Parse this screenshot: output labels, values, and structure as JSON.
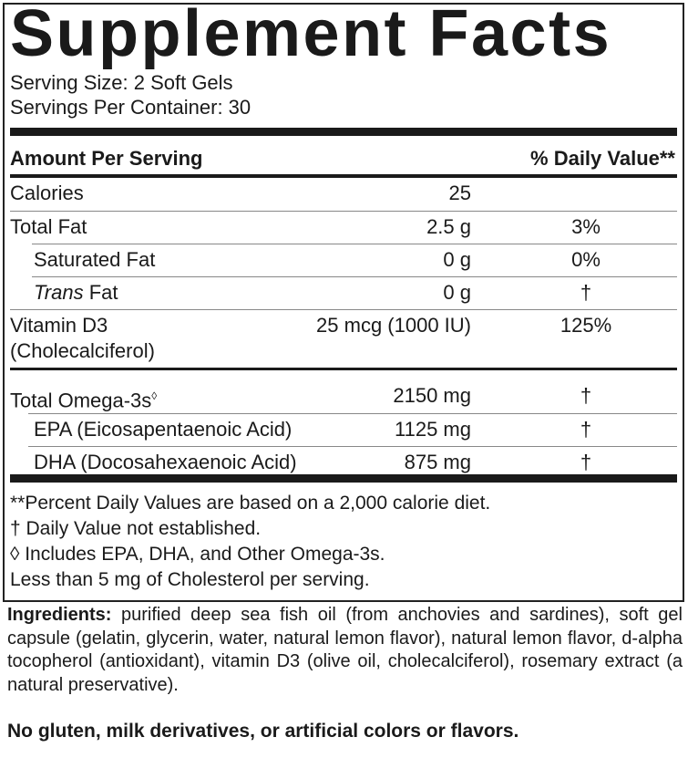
{
  "title": "Supplement Facts",
  "serving_size": "Serving Size: 2 Soft Gels",
  "servings_per_container": "Servings Per Container: 30",
  "header": {
    "amount": "Amount Per Serving",
    "dv": "% Daily Value**"
  },
  "rows": [
    {
      "label": "Calories",
      "amount": "25",
      "dv": ""
    },
    {
      "label": "Total Fat",
      "amount": "2.5 g",
      "dv": "3%"
    },
    {
      "label": "Saturated Fat",
      "amount": "0 g",
      "dv": "0%"
    },
    {
      "label_italic": "Trans",
      "label": " Fat",
      "amount": "0 g",
      "dv": "†"
    },
    {
      "label": "Vitamin D3",
      "sublabel": "(Cholecalciferol)",
      "amount": "25 mcg (1000 IU)",
      "dv": "125%"
    },
    {
      "label": "Total Omega-3s",
      "mark": "◊",
      "amount": "2150 mg",
      "dv": "†"
    },
    {
      "label": "EPA (Eicosapentaenoic Acid)",
      "amount": "1125 mg",
      "dv": "†"
    },
    {
      "label": "DHA (Docosahexaenoic Acid)",
      "amount": "875 mg",
      "dv": "†"
    }
  ],
  "footnotes": [
    "**Percent Daily Values are based on a 2,000 calorie diet.",
    "† Daily Value not established.",
    "◊ Includes EPA, DHA, and Other Omega-3s.",
    "Less than 5 mg of Cholesterol per serving."
  ],
  "ingredients": {
    "label": "Ingredients:",
    "text": " purified deep sea fish oil (from anchovies and sardines), soft gel capsule (gelatin, glycerin, water, natural lemon flavor), natural lemon flavor, d-alpha tocopherol (antioxidant), vitamin D3 (olive oil, cholecalciferol), rosemary extract (a natural preservative)."
  },
  "claim": "No gluten, milk derivatives, or artificial colors or flavors."
}
